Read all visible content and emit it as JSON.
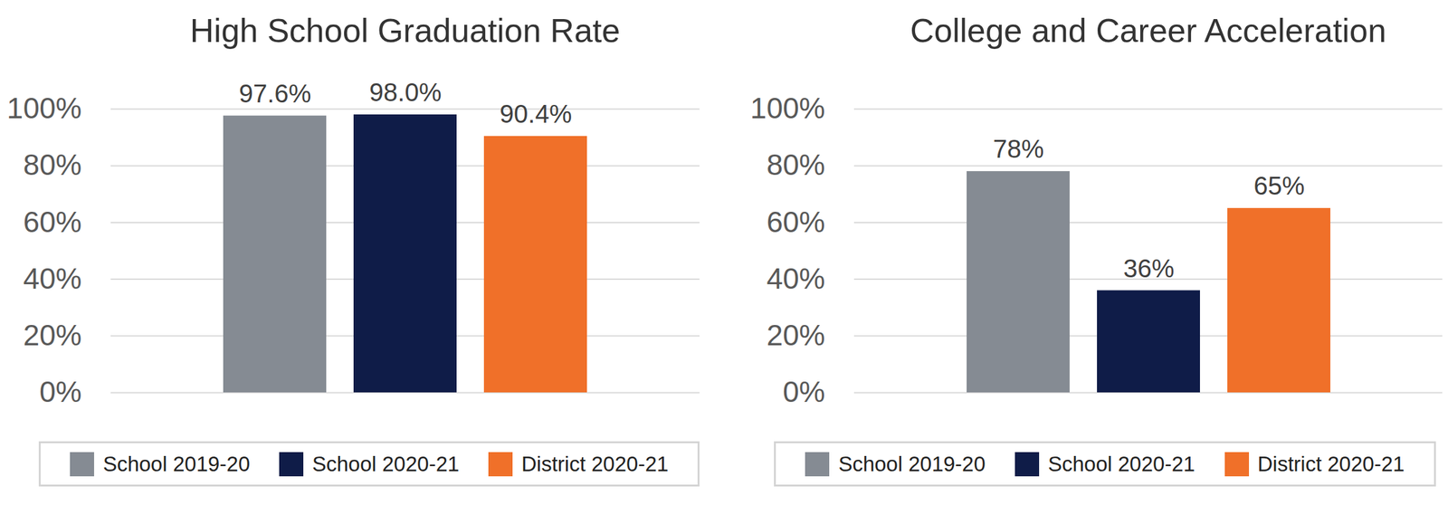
{
  "chart_data": [
    {
      "type": "bar",
      "title": "High School Graduation Rate",
      "categories": [
        null
      ],
      "series": [
        {
          "name": "School 2019-20",
          "color": "#858b93",
          "values": [
            97.6
          ],
          "value_labels": [
            "97.6%"
          ]
        },
        {
          "name": "School 2020-21",
          "color": "#0f1c48",
          "values": [
            98.0
          ],
          "value_labels": [
            "98.0%"
          ]
        },
        {
          "name": "District 2020-21",
          "color": "#f07029",
          "values": [
            90.4
          ],
          "value_labels": [
            "90.4%"
          ]
        }
      ],
      "ylim": [
        0,
        100
      ],
      "yticks": [
        {
          "value": 0,
          "label": "0%"
        },
        {
          "value": 20,
          "label": "20%"
        },
        {
          "value": 40,
          "label": "40%"
        },
        {
          "value": 60,
          "label": "60%"
        },
        {
          "value": 80,
          "label": "80%"
        },
        {
          "value": 100,
          "label": "100%"
        }
      ],
      "grid": true,
      "legend": "bottom",
      "data_labels": true
    },
    {
      "type": "bar",
      "title": "College and Career Acceleration",
      "categories": [
        null
      ],
      "series": [
        {
          "name": "School 2019-20",
          "color": "#858b93",
          "values": [
            78
          ],
          "value_labels": [
            "78%"
          ]
        },
        {
          "name": "School 2020-21",
          "color": "#0f1c48",
          "values": [
            36
          ],
          "value_labels": [
            "36%"
          ]
        },
        {
          "name": "District 2020-21",
          "color": "#f07029",
          "values": [
            65
          ],
          "value_labels": [
            "65%"
          ]
        }
      ],
      "ylim": [
        0,
        100
      ],
      "yticks": [
        {
          "value": 0,
          "label": "0%"
        },
        {
          "value": 20,
          "label": "20%"
        },
        {
          "value": 40,
          "label": "40%"
        },
        {
          "value": 60,
          "label": "60%"
        },
        {
          "value": 80,
          "label": "80%"
        },
        {
          "value": 100,
          "label": "100%"
        }
      ],
      "grid": true,
      "legend": "bottom",
      "data_labels": true
    }
  ]
}
